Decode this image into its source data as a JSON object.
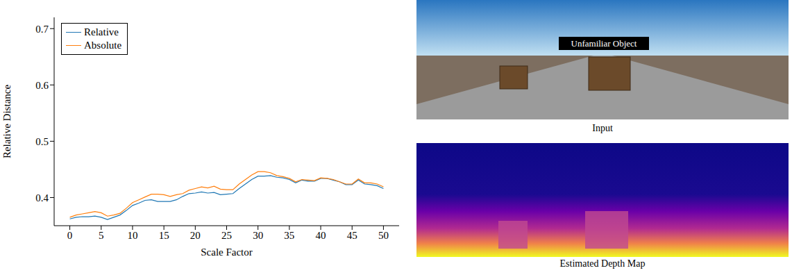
{
  "chart_data": {
    "type": "line",
    "x_label": "Scale Factor",
    "y_label": "Relative Distance",
    "x": [
      0,
      1,
      2,
      3,
      4,
      5,
      6,
      7,
      8,
      9,
      10,
      11,
      12,
      13,
      14,
      15,
      16,
      17,
      18,
      19,
      20,
      21,
      22,
      23,
      24,
      25,
      26,
      27,
      28,
      29,
      30,
      31,
      32,
      33,
      34,
      35,
      36,
      37,
      38,
      39,
      40,
      41,
      42,
      43,
      44,
      45,
      46,
      47,
      48,
      49,
      50
    ],
    "series": [
      {
        "name": "Relative",
        "color": "#1f77b4",
        "values": [
          0.362,
          0.365,
          0.366,
          0.366,
          0.367,
          0.365,
          0.361,
          0.365,
          0.369,
          0.377,
          0.386,
          0.39,
          0.395,
          0.396,
          0.393,
          0.393,
          0.393,
          0.396,
          0.402,
          0.407,
          0.408,
          0.41,
          0.408,
          0.409,
          0.405,
          0.406,
          0.407,
          0.416,
          0.424,
          0.432,
          0.438,
          0.438,
          0.439,
          0.436,
          0.435,
          0.432,
          0.426,
          0.431,
          0.429,
          0.429,
          0.434,
          0.434,
          0.431,
          0.428,
          0.423,
          0.423,
          0.431,
          0.424,
          0.423,
          0.421,
          0.416
        ]
      },
      {
        "name": "Absolute",
        "color": "#ff7f0e",
        "values": [
          0.365,
          0.369,
          0.371,
          0.373,
          0.375,
          0.373,
          0.367,
          0.369,
          0.372,
          0.381,
          0.391,
          0.396,
          0.401,
          0.406,
          0.406,
          0.405,
          0.402,
          0.405,
          0.407,
          0.413,
          0.416,
          0.419,
          0.417,
          0.42,
          0.415,
          0.414,
          0.414,
          0.424,
          0.432,
          0.44,
          0.446,
          0.446,
          0.444,
          0.439,
          0.437,
          0.434,
          0.428,
          0.432,
          0.431,
          0.43,
          0.435,
          0.434,
          0.432,
          0.428,
          0.424,
          0.424,
          0.433,
          0.426,
          0.426,
          0.424,
          0.419
        ]
      }
    ],
    "xlim": [
      -2.5,
      52.5
    ],
    "xticks": [
      0,
      5,
      10,
      15,
      20,
      25,
      30,
      35,
      40,
      45,
      50
    ],
    "ylim": [
      0.35,
      0.72
    ],
    "yticks": [
      0.4,
      0.5,
      0.6,
      0.7
    ],
    "legend": "upper left",
    "grid": false
  },
  "input_image": {
    "annotation": "Unfamiliar Object",
    "caption": "Input"
  },
  "depth_map": {
    "caption": "Estimated Depth Map"
  }
}
